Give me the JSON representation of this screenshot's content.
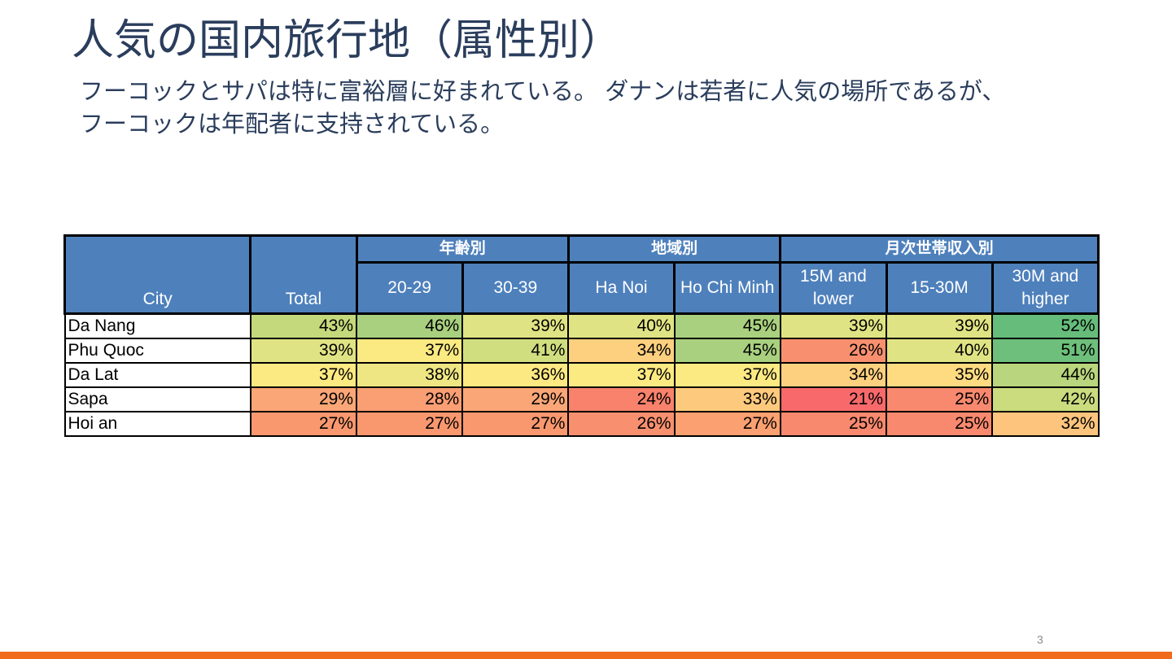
{
  "slide": {
    "title": "人気の国内旅行地（属性別）",
    "subtitle_lines": [
      "フーコックとサパは特に富裕層に好まれている。 ダナンは若者に人気の場所であるが、",
      "フーコックは年配者に支持されている。"
    ],
    "page_number": "3",
    "accent_color": "#f06b1a",
    "header_color": "#4e80bc"
  },
  "table": {
    "header": {
      "city": "City",
      "total": "Total",
      "groups": [
        "年齢別",
        "地域別",
        "月次世帯収入別"
      ],
      "subcols": [
        "20-29",
        "30-39",
        "Ha Noi",
        "Ho Chi Minh",
        "15M and lower",
        "15-30M",
        "30M and higher"
      ]
    },
    "rows": [
      {
        "city": "Da Nang",
        "cells": [
          {
            "v": "43%",
            "bg": "#c4d97b"
          },
          {
            "v": "46%",
            "bg": "#a9d07e"
          },
          {
            "v": "39%",
            "bg": "#e0e383"
          },
          {
            "v": "40%",
            "bg": "#e0e383"
          },
          {
            "v": "45%",
            "bg": "#a9d07e"
          },
          {
            "v": "39%",
            "bg": "#e0e383"
          },
          {
            "v": "39%",
            "bg": "#e0e383"
          },
          {
            "v": "52%",
            "bg": "#66bd7b"
          }
        ]
      },
      {
        "city": "Phu Quoc",
        "cells": [
          {
            "v": "39%",
            "bg": "#e0e383"
          },
          {
            "v": "37%",
            "bg": "#fbe982"
          },
          {
            "v": "41%",
            "bg": "#d1de80"
          },
          {
            "v": "34%",
            "bg": "#fdd07f"
          },
          {
            "v": "45%",
            "bg": "#a9d07e"
          },
          {
            "v": "26%",
            "bg": "#f8906f"
          },
          {
            "v": "40%",
            "bg": "#e0e383"
          },
          {
            "v": "51%",
            "bg": "#6ebf7b"
          }
        ]
      },
      {
        "city": "Da Lat",
        "cells": [
          {
            "v": "37%",
            "bg": "#fbe982"
          },
          {
            "v": "38%",
            "bg": "#eee683"
          },
          {
            "v": "36%",
            "bg": "#fde982"
          },
          {
            "v": "37%",
            "bg": "#fbe982"
          },
          {
            "v": "37%",
            "bg": "#fbe982"
          },
          {
            "v": "34%",
            "bg": "#fdd07f"
          },
          {
            "v": "35%",
            "bg": "#fedb80"
          },
          {
            "v": "44%",
            "bg": "#b9d57d"
          }
        ]
      },
      {
        "city": "Sapa",
        "cells": [
          {
            "v": "29%",
            "bg": "#fba676"
          },
          {
            "v": "28%",
            "bg": "#fa9e74"
          },
          {
            "v": "29%",
            "bg": "#fba676"
          },
          {
            "v": "24%",
            "bg": "#f8826c"
          },
          {
            "v": "33%",
            "bg": "#fdca7d"
          },
          {
            "v": "21%",
            "bg": "#f8696b"
          },
          {
            "v": "25%",
            "bg": "#f8896e"
          },
          {
            "v": "42%",
            "bg": "#cbdc7f"
          }
        ]
      },
      {
        "city": "Hoi an",
        "cells": [
          {
            "v": "27%",
            "bg": "#f9986f"
          },
          {
            "v": "27%",
            "bg": "#f9986f"
          },
          {
            "v": "27%",
            "bg": "#f9986f"
          },
          {
            "v": "26%",
            "bg": "#f8906f"
          },
          {
            "v": "27%",
            "bg": "#fba070"
          },
          {
            "v": "25%",
            "bg": "#f8896e"
          },
          {
            "v": "25%",
            "bg": "#f8896e"
          },
          {
            "v": "32%",
            "bg": "#fdc47d"
          }
        ]
      }
    ]
  }
}
